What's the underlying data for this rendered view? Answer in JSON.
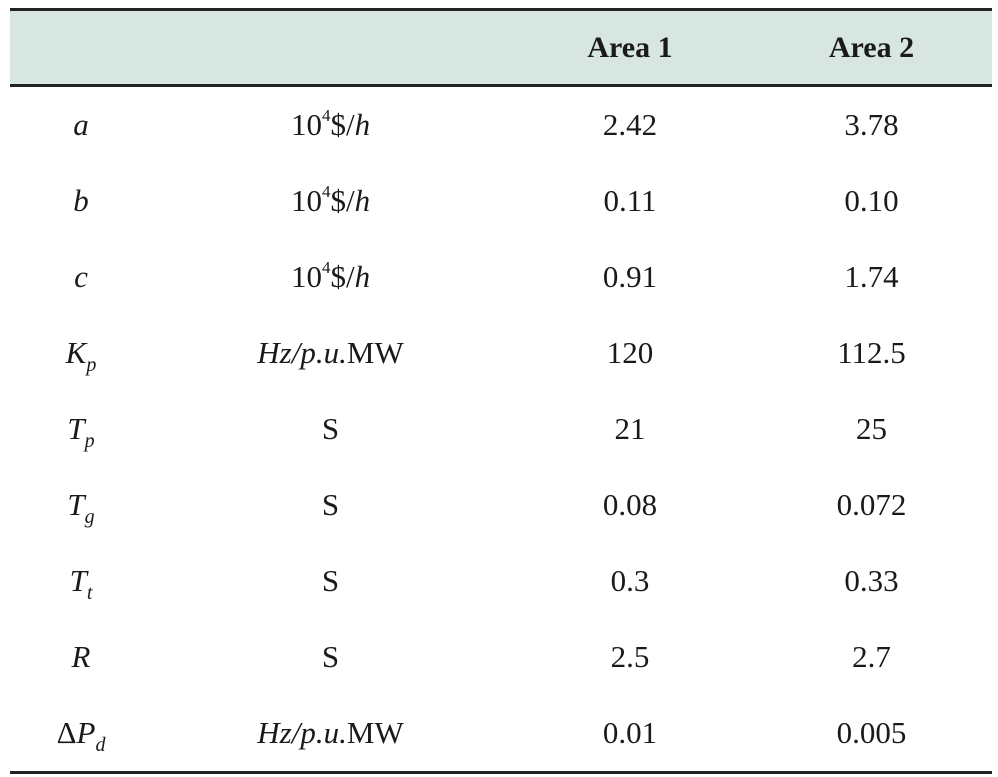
{
  "table": {
    "headers": [
      "",
      "",
      "Area 1",
      "Area 2"
    ],
    "rows": [
      {
        "symbol": "a",
        "unit": {
          "base": "10",
          "exp": "4",
          "mid": "$/",
          "var": "h"
        },
        "area1": "2.42",
        "area2": "3.78"
      },
      {
        "symbol": "b",
        "unit": {
          "base": "10",
          "exp": "4",
          "mid": "$/",
          "var": "h"
        },
        "area1": "0.11",
        "area2": "0.10"
      },
      {
        "symbol": "c",
        "unit": {
          "base": "10",
          "exp": "4",
          "mid": "$/",
          "var": "h"
        },
        "area1": "0.91",
        "area2": "1.74"
      },
      {
        "symbol": {
          "main": "K",
          "sub": "p"
        },
        "unit": {
          "italic": "Hz/p.u.",
          "plain": "MW"
        },
        "area1": "120",
        "area2": "112.5"
      },
      {
        "symbol": {
          "main": "T",
          "sub": "p"
        },
        "unit": "S",
        "area1": "21",
        "area2": "25"
      },
      {
        "symbol": {
          "main": "T",
          "sub": "g"
        },
        "unit": "S",
        "area1": "0.08",
        "area2": "0.072"
      },
      {
        "symbol": {
          "main": "T",
          "sub": "t"
        },
        "unit": "S",
        "area1": "0.3",
        "area2": "0.33"
      },
      {
        "symbol": "R",
        "unit": "S",
        "area1": "2.5",
        "area2": "2.7"
      },
      {
        "symbol": {
          "prefix": "Δ",
          "main": "P",
          "sub": "d"
        },
        "unit": {
          "italic": "Hz/p.u.",
          "plain": "MW"
        },
        "area1": "0.01",
        "area2": "0.005"
      }
    ]
  }
}
